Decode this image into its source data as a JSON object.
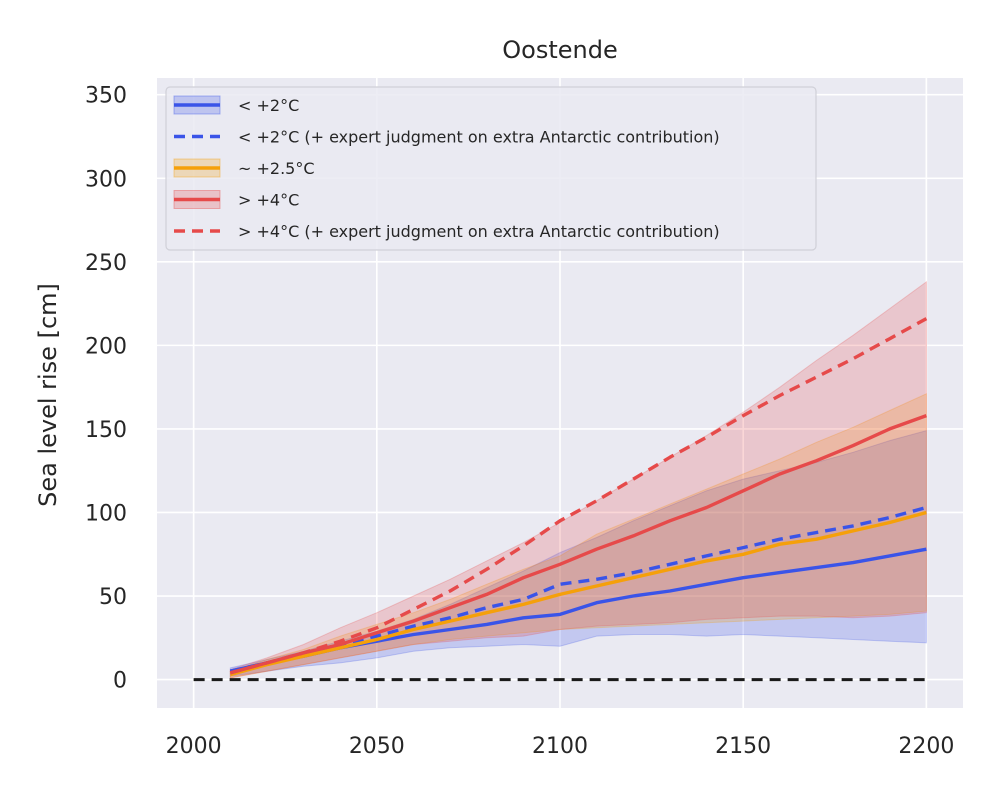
{
  "chart_data": {
    "type": "line",
    "title": "Oostende",
    "xlabel": "",
    "ylabel": "Sea level rise [cm]",
    "xlim": [
      1990,
      2210
    ],
    "ylim": [
      -17,
      360
    ],
    "xticks": [
      2000,
      2050,
      2100,
      2150,
      2200
    ],
    "yticks": [
      0,
      50,
      100,
      150,
      200,
      250,
      300,
      350
    ],
    "grid": true,
    "legend_position": "top-left",
    "reference_line": {
      "from": 2000,
      "to": 2200,
      "y": 0,
      "color": "#1a1a1a",
      "style": "dashed"
    },
    "series": [
      {
        "name": "< +2°C",
        "color": "#3a54e8",
        "style": "solid",
        "band": true,
        "x": [
          2010,
          2020,
          2030,
          2040,
          2050,
          2060,
          2070,
          2080,
          2090,
          2100,
          2110,
          2120,
          2130,
          2140,
          2150,
          2160,
          2170,
          2180,
          2190,
          2200
        ],
        "values": [
          5,
          10,
          14,
          19,
          23,
          27,
          30,
          33,
          37,
          39,
          46,
          50,
          53,
          57,
          61,
          64,
          67,
          70,
          74,
          78
        ],
        "lower": [
          2,
          5,
          8,
          10,
          13,
          17,
          19,
          20,
          21,
          20,
          26,
          27,
          27,
          26,
          27,
          26,
          25,
          24,
          23,
          22
        ],
        "upper": [
          7,
          12,
          17,
          23,
          29,
          36,
          45,
          55,
          65,
          76,
          85,
          95,
          104,
          113,
          120,
          125,
          130,
          136,
          143,
          149
        ]
      },
      {
        "name": "< +2°C (+ expert judgment on extra Antarctic contribution)",
        "color": "#3a54e8",
        "style": "dashed",
        "band": false,
        "x": [
          2010,
          2020,
          2030,
          2040,
          2050,
          2060,
          2070,
          2080,
          2090,
          2100,
          2110,
          2120,
          2130,
          2140,
          2150,
          2160,
          2170,
          2180,
          2190,
          2200
        ],
        "values": [
          5,
          10,
          15,
          20,
          26,
          32,
          37,
          43,
          48,
          57,
          60,
          64,
          69,
          74,
          79,
          84,
          88,
          92,
          97,
          103
        ]
      },
      {
        "name": "~ +2.5°C",
        "color": "#f5a00a",
        "style": "solid",
        "band": true,
        "x": [
          2010,
          2020,
          2030,
          2040,
          2050,
          2060,
          2070,
          2080,
          2090,
          2100,
          2110,
          2120,
          2130,
          2140,
          2150,
          2160,
          2170,
          2180,
          2190,
          2200
        ],
        "values": [
          3,
          9,
          14,
          19,
          24,
          30,
          35,
          40,
          45,
          51,
          56,
          61,
          66,
          71,
          75,
          81,
          84,
          89,
          94,
          100
        ],
        "lower": [
          1,
          5,
          9,
          13,
          17,
          21,
          24,
          26,
          28,
          30,
          31,
          32,
          33,
          34,
          35,
          36,
          37,
          38,
          39,
          41
        ],
        "upper": [
          5,
          12,
          18,
          26,
          33,
          40,
          48,
          57,
          66,
          74,
          87,
          96,
          105,
          114,
          123,
          132,
          142,
          151,
          161,
          171
        ]
      },
      {
        "name": "> +4°C",
        "color": "#e64a4a",
        "style": "solid",
        "band": true,
        "x": [
          2010,
          2020,
          2030,
          2040,
          2050,
          2060,
          2070,
          2080,
          2090,
          2100,
          2110,
          2120,
          2130,
          2140,
          2150,
          2160,
          2170,
          2180,
          2190,
          2200
        ],
        "values": [
          4,
          10,
          16,
          21,
          28,
          35,
          43,
          51,
          61,
          69,
          78,
          86,
          95,
          103,
          113,
          123,
          131,
          140,
          150,
          158
        ],
        "lower": [
          1,
          5,
          9,
          13,
          17,
          21,
          23,
          25,
          26,
          30,
          32,
          33,
          34,
          36,
          37,
          38,
          38,
          37,
          38,
          40
        ],
        "upper": [
          6,
          13,
          21,
          31,
          40,
          50,
          60,
          71,
          82,
          94,
          107,
          120,
          133,
          146,
          160,
          175,
          191,
          206,
          222,
          238
        ]
      },
      {
        "name": "> +4°C (+ expert judgment on extra Antarctic contribution)",
        "color": "#e64a4a",
        "style": "dashed",
        "band": false,
        "x": [
          2010,
          2020,
          2030,
          2040,
          2050,
          2060,
          2070,
          2080,
          2090,
          2100,
          2110,
          2120,
          2130,
          2140,
          2150,
          2160,
          2170,
          2180,
          2190,
          2200
        ],
        "values": [
          4,
          10,
          16,
          23,
          31,
          42,
          53,
          66,
          80,
          95,
          107,
          120,
          133,
          145,
          158,
          170,
          181,
          192,
          204,
          216
        ]
      }
    ]
  }
}
